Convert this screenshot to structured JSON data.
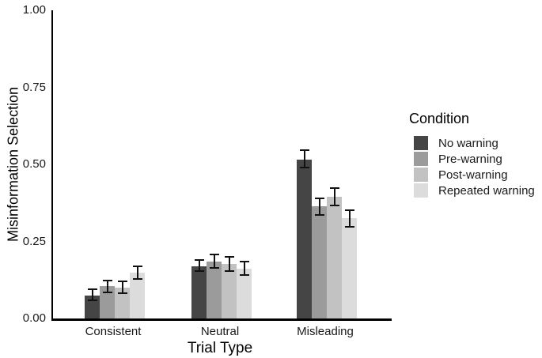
{
  "chart_data": {
    "type": "bar",
    "title": "",
    "xlabel": "Trial Type",
    "ylabel": "Misinformation Selection",
    "categories": [
      "Consistent",
      "Neutral",
      "Misleading"
    ],
    "series": [
      {
        "name": "No warning",
        "color": "#454545",
        "values": [
          0.075,
          0.17,
          0.515
        ],
        "error_low": [
          0.059,
          0.153,
          0.49
        ],
        "error_high": [
          0.094,
          0.19,
          0.545
        ]
      },
      {
        "name": "Pre-warning",
        "color": "#9b9b9b",
        "values": [
          0.105,
          0.185,
          0.365
        ],
        "error_low": [
          0.084,
          0.163,
          0.335
        ],
        "error_high": [
          0.124,
          0.207,
          0.39
        ]
      },
      {
        "name": "Post-warning",
        "color": "#c2c2c2",
        "values": [
          0.1,
          0.178,
          0.395
        ],
        "error_low": [
          0.081,
          0.155,
          0.367
        ],
        "error_high": [
          0.121,
          0.199,
          0.424
        ]
      },
      {
        "name": "Repeated warning",
        "color": "#dcdcdc",
        "values": [
          0.148,
          0.162,
          0.325
        ],
        "error_low": [
          0.128,
          0.141,
          0.297
        ],
        "error_high": [
          0.169,
          0.184,
          0.352
        ]
      }
    ],
    "ylim": [
      0,
      1
    ],
    "yticks": [
      "0.00",
      "0.25",
      "0.50",
      "0.75",
      "1.00"
    ],
    "legend_title": "Condition",
    "legend_position": "right",
    "grid": false,
    "error_bars": true
  }
}
